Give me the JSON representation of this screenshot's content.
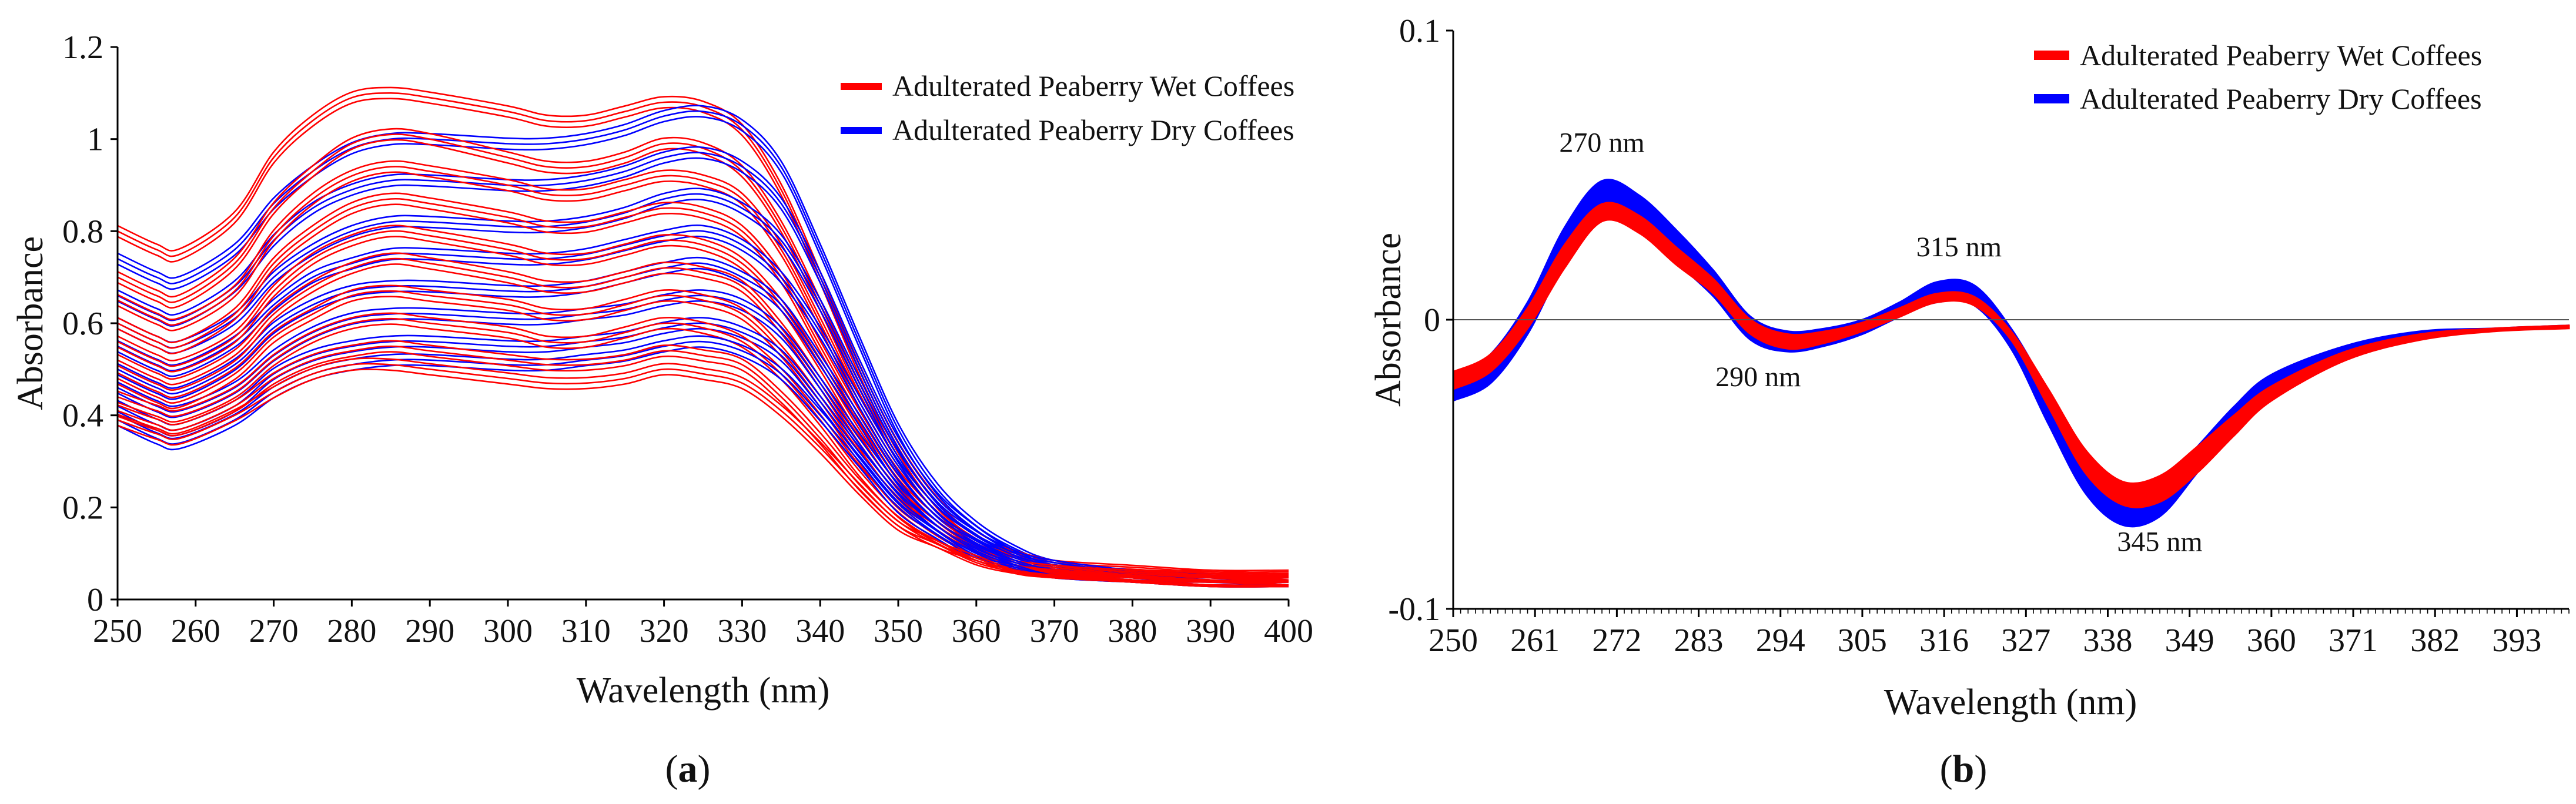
{
  "chart_data": [
    {
      "panel": "a",
      "panel_label": "a",
      "type": "line",
      "title": "",
      "xlabel": "Wavelength (nm)",
      "ylabel": "Absorbance",
      "xlim": [
        250,
        400
      ],
      "ylim": [
        0,
        1.2
      ],
      "x_ticks": [
        250,
        260,
        270,
        280,
        290,
        300,
        310,
        320,
        330,
        340,
        350,
        360,
        370,
        380,
        390,
        400
      ],
      "x_tick_labels": [
        "250",
        "260",
        "270",
        "280",
        "290",
        "300",
        "310",
        "320",
        "330",
        "340",
        "350",
        "360",
        "370",
        "380",
        "390",
        "400"
      ],
      "y_ticks": [
        0,
        0.2,
        0.4,
        0.6,
        0.8,
        1,
        1.2
      ],
      "y_tick_labels": [
        "0",
        "0.2",
        "0.4",
        "0.6",
        "0.8",
        "1",
        "1.2"
      ],
      "grid": false,
      "legend_position": "top-right",
      "x": [
        250,
        255,
        258,
        265,
        270,
        275,
        280,
        285,
        290,
        300,
        305,
        310,
        315,
        320,
        325,
        330,
        335,
        340,
        345,
        350,
        355,
        360,
        365,
        370,
        380,
        390,
        400
      ],
      "series": [
        {
          "name": "Adulterated Peaberry Wet Coffees",
          "color": "#ff0000",
          "curves": [
            [
              0.8,
              0.76,
              0.75,
              0.83,
              0.96,
              1.04,
              1.09,
              1.1,
              1.09,
              1.06,
              1.04,
              1.04,
              1.06,
              1.08,
              1.07,
              1.02,
              0.89,
              0.7,
              0.5,
              0.33,
              0.21,
              0.14,
              0.1,
              0.08,
              0.07,
              0.06,
              0.06
            ],
            [
              0.7,
              0.66,
              0.65,
              0.73,
              0.85,
              0.93,
              0.99,
              1.01,
              1.0,
              0.96,
              0.94,
              0.94,
              0.96,
              0.99,
              0.98,
              0.93,
              0.81,
              0.64,
              0.46,
              0.31,
              0.2,
              0.13,
              0.1,
              0.08,
              0.06,
              0.06,
              0.05
            ],
            [
              0.65,
              0.61,
              0.6,
              0.67,
              0.79,
              0.87,
              0.92,
              0.94,
              0.93,
              0.9,
              0.88,
              0.88,
              0.9,
              0.92,
              0.91,
              0.87,
              0.76,
              0.6,
              0.43,
              0.29,
              0.19,
              0.13,
              0.09,
              0.07,
              0.06,
              0.05,
              0.05
            ],
            [
              0.6,
              0.56,
              0.55,
              0.62,
              0.73,
              0.8,
              0.85,
              0.87,
              0.86,
              0.83,
              0.81,
              0.81,
              0.83,
              0.85,
              0.84,
              0.8,
              0.7,
              0.55,
              0.4,
              0.27,
              0.18,
              0.12,
              0.09,
              0.07,
              0.06,
              0.05,
              0.05
            ],
            [
              0.56,
              0.52,
              0.51,
              0.57,
              0.67,
              0.74,
              0.78,
              0.8,
              0.79,
              0.76,
              0.74,
              0.74,
              0.76,
              0.78,
              0.77,
              0.73,
              0.64,
              0.51,
              0.37,
              0.25,
              0.17,
              0.11,
              0.08,
              0.07,
              0.05,
              0.05,
              0.04
            ],
            [
              0.52,
              0.48,
              0.47,
              0.53,
              0.62,
              0.68,
              0.72,
              0.74,
              0.73,
              0.7,
              0.68,
              0.68,
              0.7,
              0.72,
              0.71,
              0.68,
              0.59,
              0.47,
              0.34,
              0.23,
              0.16,
              0.11,
              0.08,
              0.06,
              0.05,
              0.04,
              0.04
            ],
            [
              0.48,
              0.44,
              0.43,
              0.49,
              0.57,
              0.62,
              0.66,
              0.67,
              0.66,
              0.64,
              0.62,
              0.62,
              0.64,
              0.66,
              0.65,
              0.62,
              0.54,
              0.43,
              0.31,
              0.21,
              0.15,
              0.1,
              0.07,
              0.06,
              0.05,
              0.04,
              0.04
            ],
            [
              0.44,
              0.41,
              0.4,
              0.45,
              0.52,
              0.57,
              0.6,
              0.61,
              0.6,
              0.58,
              0.56,
              0.56,
              0.58,
              0.6,
              0.59,
              0.56,
              0.49,
              0.39,
              0.28,
              0.19,
              0.13,
              0.09,
              0.07,
              0.06,
              0.04,
              0.04,
              0.03
            ],
            [
              0.41,
              0.38,
              0.37,
              0.42,
              0.48,
              0.52,
              0.54,
              0.55,
              0.54,
              0.52,
              0.51,
              0.51,
              0.52,
              0.54,
              0.53,
              0.51,
              0.44,
              0.35,
              0.25,
              0.17,
              0.12,
              0.09,
              0.06,
              0.05,
              0.04,
              0.03,
              0.03
            ],
            [
              0.39,
              0.36,
              0.35,
              0.4,
              0.45,
              0.49,
              0.51,
              0.51,
              0.5,
              0.48,
              0.47,
              0.47,
              0.48,
              0.5,
              0.49,
              0.47,
              0.41,
              0.33,
              0.24,
              0.16,
              0.12,
              0.08,
              0.06,
              0.05,
              0.04,
              0.03,
              0.03
            ]
          ]
        },
        {
          "name": "Adulterated Peaberry Dry Coffees",
          "color": "#0000ff",
          "curves": [
            [
              0.74,
              0.7,
              0.69,
              0.76,
              0.86,
              0.93,
              0.98,
              1.0,
              1.0,
              0.99,
              0.99,
              1.0,
              1.02,
              1.05,
              1.06,
              1.03,
              0.94,
              0.76,
              0.56,
              0.37,
              0.24,
              0.16,
              0.11,
              0.08,
              0.06,
              0.05,
              0.05
            ],
            [
              0.66,
              0.62,
              0.61,
              0.68,
              0.78,
              0.85,
              0.89,
              0.91,
              0.91,
              0.9,
              0.9,
              0.91,
              0.93,
              0.96,
              0.97,
              0.94,
              0.86,
              0.7,
              0.51,
              0.34,
              0.22,
              0.15,
              0.1,
              0.08,
              0.06,
              0.05,
              0.04
            ],
            [
              0.6,
              0.56,
              0.55,
              0.61,
              0.7,
              0.76,
              0.8,
              0.82,
              0.82,
              0.81,
              0.81,
              0.82,
              0.84,
              0.87,
              0.88,
              0.85,
              0.78,
              0.64,
              0.47,
              0.31,
              0.2,
              0.14,
              0.1,
              0.07,
              0.05,
              0.04,
              0.04
            ],
            [
              0.55,
              0.51,
              0.5,
              0.56,
              0.64,
              0.7,
              0.73,
              0.75,
              0.75,
              0.74,
              0.74,
              0.75,
              0.77,
              0.79,
              0.8,
              0.77,
              0.7,
              0.58,
              0.43,
              0.29,
              0.19,
              0.13,
              0.09,
              0.07,
              0.05,
              0.04,
              0.04
            ],
            [
              0.5,
              0.46,
              0.45,
              0.51,
              0.59,
              0.64,
              0.67,
              0.68,
              0.68,
              0.67,
              0.67,
              0.68,
              0.7,
              0.72,
              0.73,
              0.7,
              0.64,
              0.52,
              0.39,
              0.26,
              0.17,
              0.12,
              0.08,
              0.06,
              0.05,
              0.04,
              0.03
            ],
            [
              0.46,
              0.42,
              0.41,
              0.46,
              0.53,
              0.58,
              0.61,
              0.62,
              0.62,
              0.61,
              0.61,
              0.62,
              0.63,
              0.65,
              0.66,
              0.64,
              0.58,
              0.47,
              0.35,
              0.24,
              0.16,
              0.11,
              0.08,
              0.06,
              0.04,
              0.04,
              0.03
            ],
            [
              0.42,
              0.38,
              0.37,
              0.42,
              0.49,
              0.53,
              0.55,
              0.56,
              0.56,
              0.55,
              0.55,
              0.56,
              0.57,
              0.59,
              0.6,
              0.58,
              0.53,
              0.43,
              0.32,
              0.22,
              0.15,
              0.1,
              0.07,
              0.05,
              0.04,
              0.03,
              0.03
            ],
            [
              0.39,
              0.35,
              0.34,
              0.39,
              0.45,
              0.49,
              0.51,
              0.52,
              0.52,
              0.51,
              0.51,
              0.52,
              0.53,
              0.55,
              0.56,
              0.54,
              0.49,
              0.4,
              0.3,
              0.2,
              0.14,
              0.09,
              0.07,
              0.05,
              0.04,
              0.03,
              0.03
            ]
          ]
        }
      ],
      "legend": [
        "Adulterated Peaberry Wet Coffees",
        "Adulterated Peaberry Dry Coffees"
      ]
    },
    {
      "panel": "b",
      "panel_label": "b",
      "type": "line",
      "title": "",
      "xlabel": "Wavelength (nm)",
      "ylabel": "Absorbance",
      "xlim": [
        250,
        400
      ],
      "ylim": [
        -0.1,
        0.1
      ],
      "x_ticks": [
        250,
        261,
        272,
        283,
        294,
        305,
        316,
        327,
        338,
        349,
        360,
        371,
        382,
        393
      ],
      "x_tick_labels": [
        "250",
        "261",
        "272",
        "283",
        "294",
        "305",
        "316",
        "327",
        "338",
        "349",
        "360",
        "371",
        "382",
        "393"
      ],
      "y_ticks": [
        -0.1,
        0,
        0.1
      ],
      "y_tick_labels": [
        "-0.1",
        "0",
        "0.1"
      ],
      "grid": false,
      "zero_line": true,
      "legend_position": "top-right",
      "x": [
        250,
        255,
        260,
        265,
        270,
        275,
        280,
        285,
        290,
        295,
        300,
        305,
        310,
        315,
        320,
        325,
        330,
        335,
        340,
        345,
        350,
        355,
        360,
        370,
        380,
        390,
        400
      ],
      "series": [
        {
          "name": "Adulterated Peaberry Wet Coffees",
          "color": "#ff0000",
          "band_upper": [
            -0.018,
            -0.012,
            0.004,
            0.026,
            0.04,
            0.036,
            0.025,
            0.014,
            0.0,
            -0.005,
            -0.004,
            -0.001,
            0.004,
            0.009,
            0.008,
            -0.004,
            -0.024,
            -0.045,
            -0.056,
            -0.054,
            -0.044,
            -0.033,
            -0.023,
            -0.011,
            -0.005,
            -0.003,
            -0.002
          ],
          "band_lower": [
            -0.024,
            -0.018,
            -0.003,
            0.018,
            0.034,
            0.03,
            0.019,
            0.009,
            -0.005,
            -0.01,
            -0.008,
            -0.004,
            0.001,
            0.006,
            0.005,
            -0.007,
            -0.03,
            -0.053,
            -0.064,
            -0.063,
            -0.053,
            -0.04,
            -0.028,
            -0.014,
            -0.007,
            -0.004,
            -0.003
          ]
        },
        {
          "name": "Adulterated Peaberry Dry Coffees",
          "color": "#0000ff",
          "band_upper": [
            -0.02,
            -0.012,
            0.006,
            0.032,
            0.048,
            0.043,
            0.031,
            0.017,
            0.001,
            -0.004,
            -0.003,
            0.0,
            0.006,
            0.013,
            0.012,
            -0.003,
            -0.025,
            -0.049,
            -0.06,
            -0.057,
            -0.044,
            -0.03,
            -0.019,
            -0.009,
            -0.004,
            -0.003,
            -0.002
          ],
          "band_lower": [
            -0.028,
            -0.022,
            -0.005,
            0.02,
            0.038,
            0.033,
            0.02,
            0.008,
            -0.007,
            -0.011,
            -0.009,
            -0.005,
            0.001,
            0.006,
            0.005,
            -0.01,
            -0.036,
            -0.06,
            -0.071,
            -0.068,
            -0.053,
            -0.037,
            -0.024,
            -0.011,
            -0.005,
            -0.003,
            -0.002
          ]
        }
      ],
      "annotations": [
        {
          "text": "270 nm",
          "x": 270,
          "y": 0.058
        },
        {
          "text": "290 nm",
          "x": 291,
          "y": -0.023
        },
        {
          "text": "315 nm",
          "x": 318,
          "y": 0.022
        },
        {
          "text": "345 nm",
          "x": 345,
          "y": -0.08
        }
      ],
      "legend": [
        "Adulterated Peaberry Wet Coffees",
        "Adulterated Peaberry Dry Coffees"
      ]
    }
  ]
}
